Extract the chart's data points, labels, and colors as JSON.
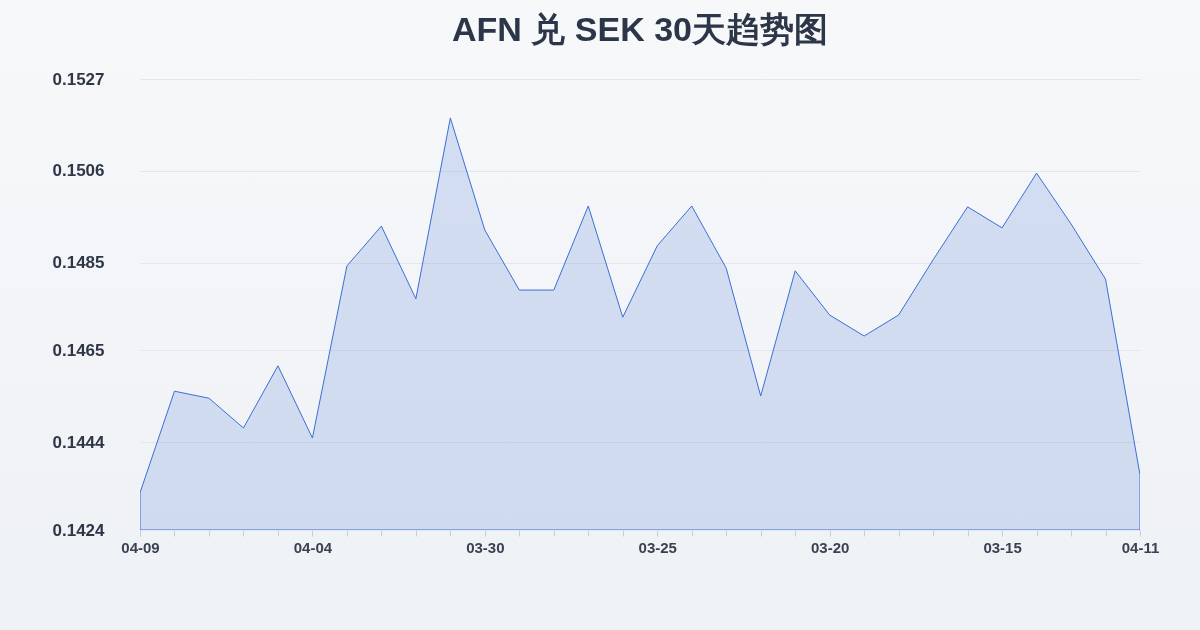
{
  "chart_data": {
    "type": "area",
    "title": "AFN 兑 SEK 30天趋势图",
    "categories": [
      "04-09",
      null,
      null,
      null,
      null,
      "04-04",
      null,
      null,
      null,
      null,
      "03-30",
      null,
      null,
      null,
      null,
      "03-25",
      null,
      null,
      null,
      null,
      "03-20",
      null,
      null,
      null,
      null,
      "03-15",
      null,
      null,
      null,
      "04-11"
    ],
    "series": [
      {
        "color": "#3b6fd4",
        "values": [
          0.14325,
          0.14557,
          0.14541,
          0.14473,
          0.14615,
          0.1445,
          0.14843,
          0.14934,
          0.14768,
          0.15181,
          0.14925,
          0.14788,
          0.14788,
          0.1498,
          0.14726,
          0.14889,
          0.1498,
          0.14838,
          0.14546,
          0.14832,
          0.14731,
          0.14683,
          0.14731,
          0.14857,
          0.14978,
          0.1493,
          0.15055,
          0.14939,
          0.14813,
          0.14366
        ]
      }
    ],
    "ylim": [
      0.1424,
      0.1527
    ],
    "yticks": [
      0.1424,
      0.1444,
      0.1465,
      0.1485,
      0.1506,
      0.1527
    ],
    "grid": "y"
  }
}
